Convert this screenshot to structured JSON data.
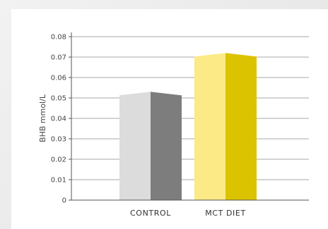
{
  "chart_data": {
    "type": "bar",
    "title": "",
    "xlabel": "",
    "ylabel": "BHB mmol/L",
    "categories": [
      "CONTROL",
      "MCT DIET"
    ],
    "values": [
      0.053,
      0.072
    ],
    "ylim": [
      0,
      0.08
    ],
    "yticks": [
      "0",
      "0.01",
      "0.02",
      "0.03",
      "0.04",
      "0.05",
      "0.06",
      "0.07",
      "0.08"
    ],
    "grid": true,
    "legend": "none",
    "colors": {
      "CONTROL": {
        "light": "#dcdcdc",
        "dark": "#7d7d7d"
      },
      "MCT DIET": {
        "light": "#fbea86",
        "dark": "#dcc300"
      }
    }
  }
}
